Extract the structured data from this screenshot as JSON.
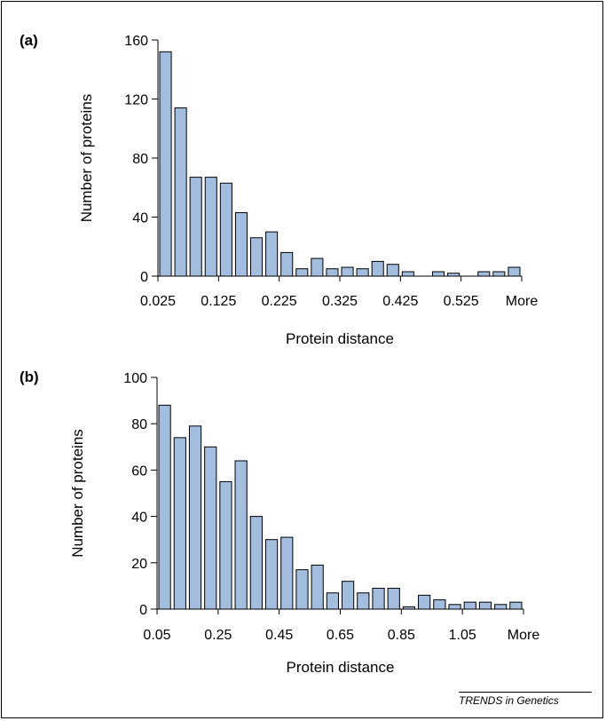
{
  "credit": "TRENDS in Genetics",
  "colors": {
    "bar_fill": "#a3bddf",
    "bar_stroke": "#000000",
    "axis": "#000000"
  },
  "chart_data": [
    {
      "type": "bar",
      "panel_label": "(a)",
      "title": "",
      "xlabel": "Protein distance",
      "ylabel": "Number of proteins",
      "ylim": [
        0,
        160
      ],
      "yticks": [
        0,
        40,
        80,
        120,
        160
      ],
      "x_tick_labels": [
        "0.025",
        "0.125",
        "0.225",
        "0.325",
        "0.425",
        "0.525",
        "More"
      ],
      "x_tick_positions": [
        0,
        4,
        8,
        12,
        16,
        20,
        24
      ],
      "categories": [
        "0.025",
        "0.05",
        "0.075",
        "0.1",
        "0.125",
        "0.15",
        "0.175",
        "0.2",
        "0.225",
        "0.25",
        "0.275",
        "0.3",
        "0.325",
        "0.35",
        "0.375",
        "0.4",
        "0.425",
        "0.45",
        "0.475",
        "0.5",
        "0.525",
        "0.55",
        "0.575",
        "More"
      ],
      "values": [
        152,
        114,
        67,
        67,
        63,
        43,
        26,
        30,
        16,
        5,
        12,
        5,
        6,
        5,
        10,
        8,
        3,
        0,
        3,
        2,
        0,
        3,
        3,
        6
      ],
      "grid": false,
      "legend": null
    },
    {
      "type": "bar",
      "panel_label": "(b)",
      "title": "",
      "xlabel": "Protein distance",
      "ylabel": "Number of proteins",
      "ylim": [
        0,
        100
      ],
      "yticks": [
        0,
        20,
        40,
        60,
        80,
        100
      ],
      "x_tick_labels": [
        "0.05",
        "0.25",
        "0.45",
        "0.65",
        "0.85",
        "1.05",
        "More"
      ],
      "x_tick_positions": [
        0,
        4,
        8,
        12,
        16,
        20,
        24
      ],
      "categories": [
        "0.05",
        "0.1",
        "0.15",
        "0.2",
        "0.25",
        "0.3",
        "0.35",
        "0.4",
        "0.45",
        "0.5",
        "0.55",
        "0.6",
        "0.65",
        "0.7",
        "0.75",
        "0.8",
        "0.85",
        "0.9",
        "0.95",
        "1",
        "1.05",
        "1.1",
        "1.15",
        "1.2"
      ],
      "values": [
        88,
        74,
        79,
        70,
        55,
        64,
        40,
        30,
        31,
        17,
        19,
        7,
        12,
        7,
        9,
        9,
        1,
        6,
        4,
        2,
        3,
        3,
        2,
        3
      ],
      "grid": false,
      "legend": null
    }
  ]
}
